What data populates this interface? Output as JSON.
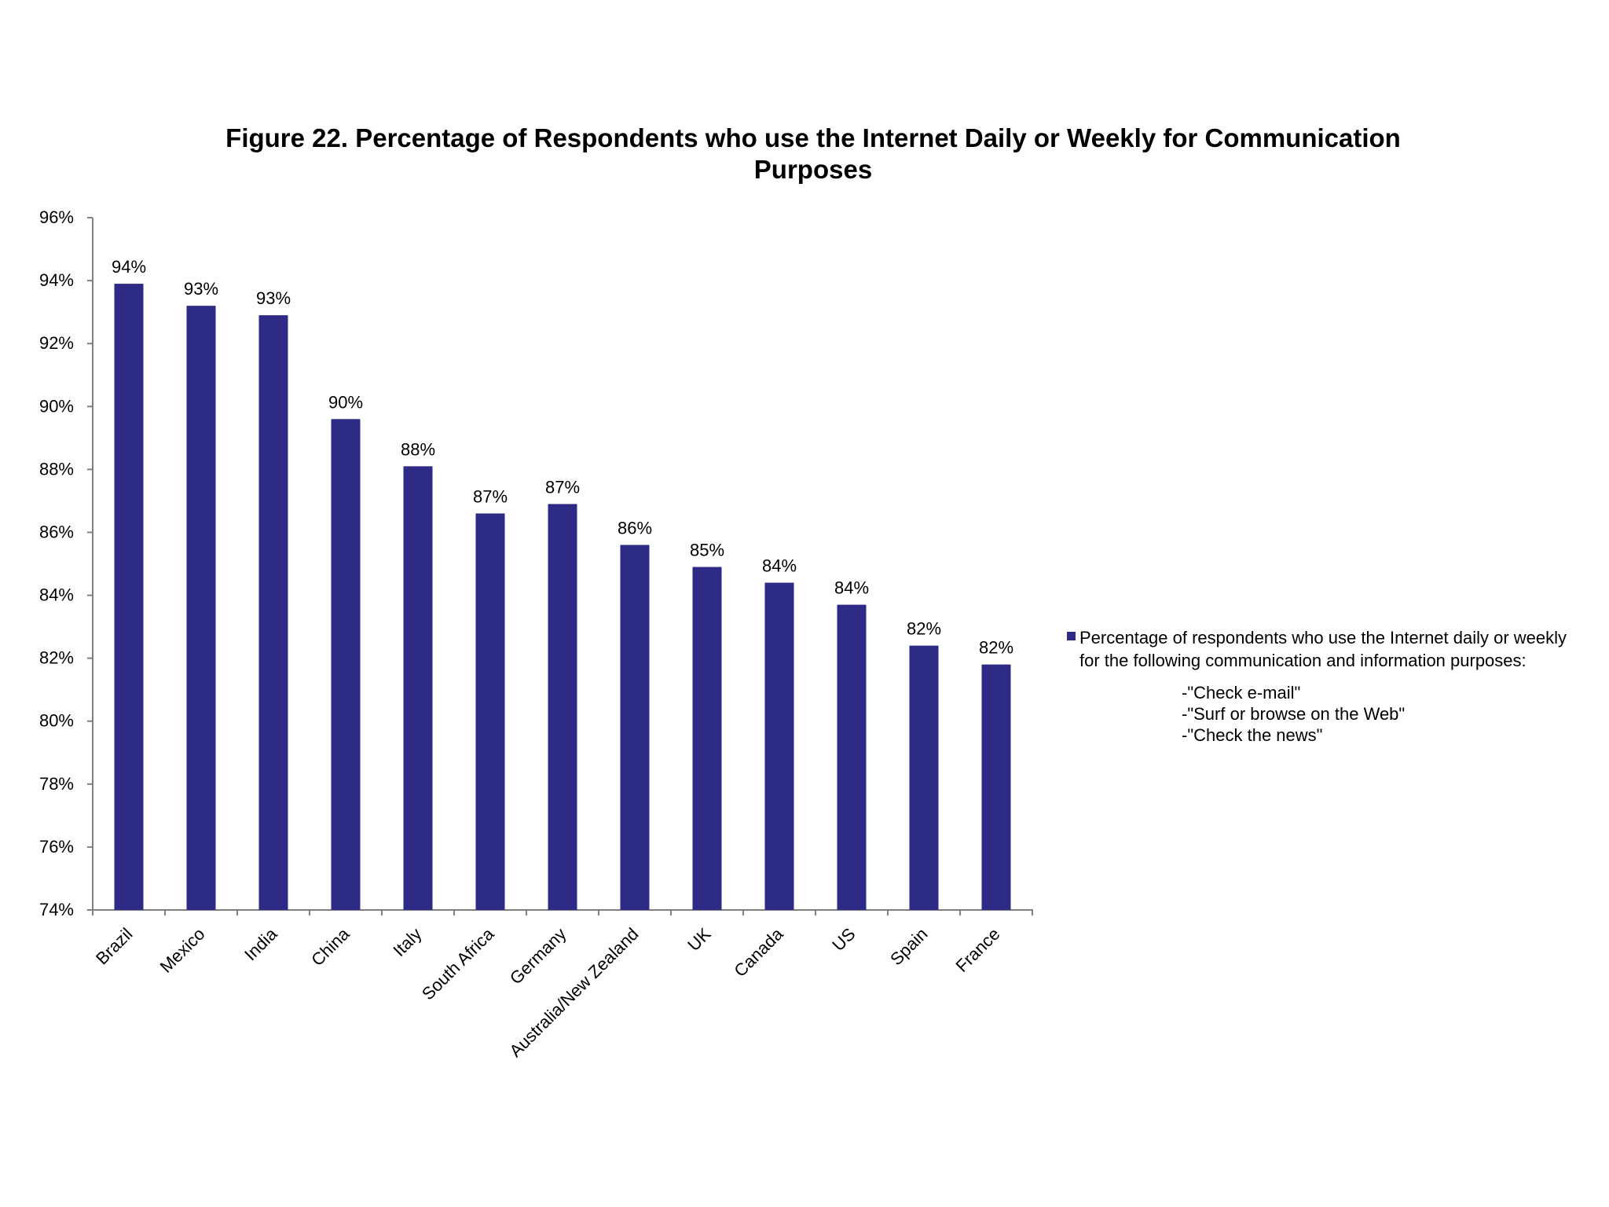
{
  "chart_data": {
    "type": "bar",
    "title_lines": [
      "Figure 22. Percentage of Respondents who use the Internet Daily or Weekly  for Communication",
      "Purposes"
    ],
    "categories": [
      "Brazil",
      "Mexico",
      "India",
      "China",
      "Italy",
      "South Africa",
      "Germany",
      "Australia/New Zealand",
      "UK",
      "Canada",
      "US",
      "Spain",
      "France"
    ],
    "series": [
      {
        "name": "Percentage of respondents  who use the Internet daily or weekly for the following communication and information purposes:",
        "color": "#2e2b86",
        "values": [
          93.9,
          93.2,
          92.9,
          89.6,
          88.1,
          86.6,
          86.9,
          85.6,
          84.9,
          84.4,
          83.7,
          82.4,
          81.8
        ],
        "labels": [
          "94%",
          "93%",
          "93%",
          "90%",
          "88%",
          "87%",
          "87%",
          "86%",
          "85%",
          "84%",
          "84%",
          "82%",
          "82%"
        ]
      }
    ],
    "ylim": [
      74,
      96
    ],
    "yticks": [
      "96%",
      "94%",
      "92%",
      "90%",
      "88%",
      "86%",
      "84%",
      "82%",
      "80%",
      "78%",
      "76%",
      "74%"
    ],
    "grid": false,
    "legend_position": "right"
  },
  "legend": {
    "line1": "Percentage of respondents  who use the Internet daily or weekly",
    "line2": "for the following communication and information purposes:",
    "items": [
      "-\"Check e-mail\"",
      "-\"Surf or browse on the Web\"",
      "-\"Check the news\""
    ]
  }
}
